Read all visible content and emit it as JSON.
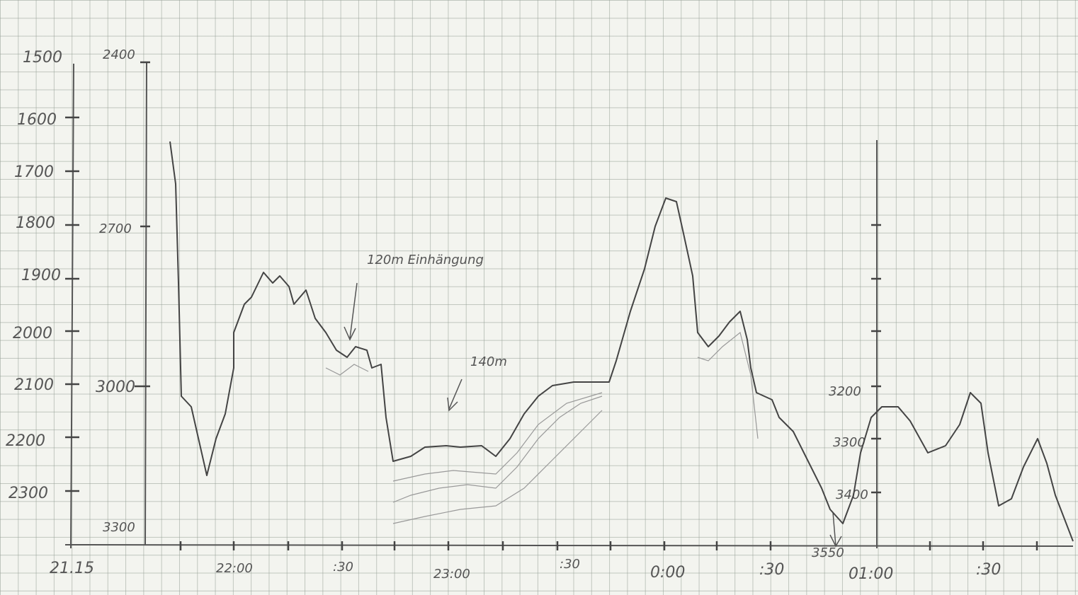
{
  "axes": {
    "left": [
      "1500",
      "1600",
      "1700",
      "1800",
      "1900",
      "2000",
      "2100",
      "2200",
      "2300"
    ],
    "second": [
      "2400",
      "2700",
      "3000",
      "3300"
    ],
    "right": [
      "3200",
      "3300",
      "3400",
      "3550"
    ],
    "time": [
      "21.15",
      "22:00",
      ":30",
      "23:00",
      ":30",
      "0:00",
      ":30",
      "01:00",
      ":30"
    ]
  },
  "annotations": [
    "120m Einhängung",
    "140m"
  ]
}
